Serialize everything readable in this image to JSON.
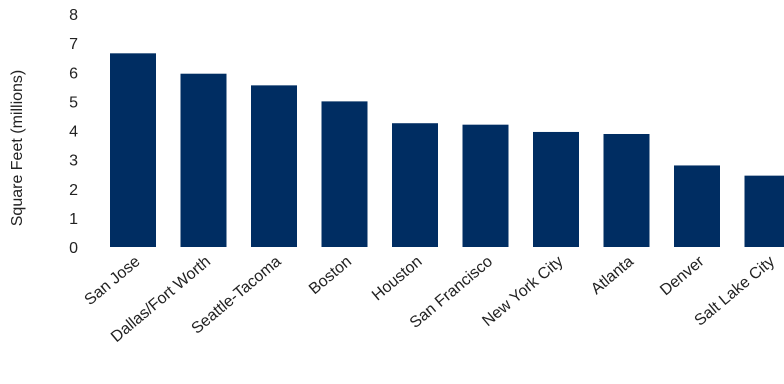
{
  "chart_data": {
    "type": "bar",
    "title": "",
    "xlabel": "",
    "ylabel": "Square Feet (millions)",
    "ylim": [
      0,
      8
    ],
    "yticks": [
      0,
      1,
      2,
      3,
      4,
      5,
      6,
      7,
      8
    ],
    "grid": false,
    "categories": [
      "San Jose",
      "Dallas/Fort Worth",
      "Seattle-Tacoma",
      "Boston",
      "Houston",
      "San Francisco",
      "New York City",
      "Atlanta",
      "Denver",
      "Salt Lake City"
    ],
    "values": [
      6.65,
      5.95,
      5.55,
      5.0,
      4.25,
      4.2,
      3.95,
      3.88,
      2.8,
      2.45
    ],
    "bar_color": "#002D62"
  }
}
